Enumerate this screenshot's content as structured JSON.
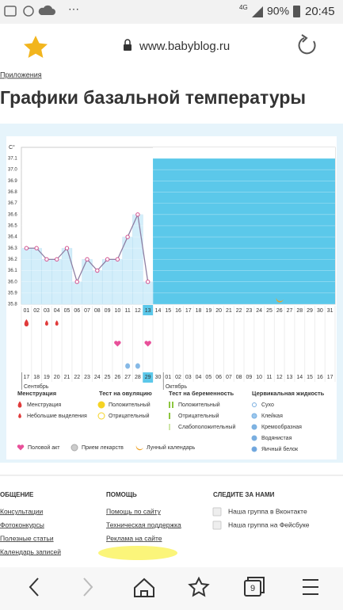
{
  "status_bar": {
    "network": "4G",
    "battery": "90%",
    "time": "20:45"
  },
  "browser": {
    "url": "www.babyblog.ru",
    "tabs": "9"
  },
  "breadcrumb": "Приложения",
  "title": "Графики базальной температуры",
  "chart_data": {
    "type": "line",
    "y_label": "C°",
    "categories": [
      "01",
      "02",
      "03",
      "04",
      "05",
      "06",
      "07",
      "08",
      "09",
      "10",
      "11",
      "12",
      "13",
      "14",
      "15",
      "16",
      "17",
      "18",
      "19",
      "20",
      "21",
      "22",
      "23",
      "24",
      "25",
      "26",
      "27",
      "28",
      "29",
      "30",
      "31"
    ],
    "dates": [
      "17",
      "18",
      "19",
      "20",
      "21",
      "22",
      "23",
      "24",
      "25",
      "26",
      "27",
      "28",
      "29",
      "30",
      "01",
      "02",
      "03",
      "04",
      "05",
      "06",
      "07",
      "08",
      "09",
      "10",
      "11",
      "12",
      "13",
      "14",
      "15",
      "16",
      "17"
    ],
    "months": [
      "Сентябрь",
      "Октябрь"
    ],
    "values": [
      36.3,
      36.3,
      36.2,
      36.2,
      36.3,
      36.0,
      36.2,
      36.1,
      36.2,
      36.2,
      36.4,
      36.6,
      36.0,
      null,
      null,
      null,
      null,
      null,
      null,
      null,
      null,
      null,
      null,
      null,
      null,
      null,
      null,
      null,
      null,
      null,
      null
    ],
    "color": "#8e7fa3",
    "ylim": [
      35.8,
      37.1
    ],
    "yticks": [
      35.8,
      35.9,
      {
        "value": 36,
        "label": "36.0"
      },
      36.1,
      36.2,
      36.3,
      36.4,
      36.5,
      36.6,
      36.7,
      36.8,
      36.9,
      {
        "value": 37,
        "label": "37.0"
      },
      37.1
    ],
    "grid": true
  },
  "legend": {
    "groups": [
      {
        "title": "Менструация",
        "items": [
          "Менструация",
          "Небольшие выделения"
        ]
      },
      {
        "title": "Тест на овуляцию",
        "items": [
          "Положительный",
          "Отрицательный"
        ]
      },
      {
        "title": "Тест на беременность",
        "items": [
          "Положительный",
          "Отрицательный",
          "Слабоположительный"
        ]
      },
      {
        "title": "Цервикальная жидкость",
        "items": [
          "Сухо",
          "Клейкая",
          "Кремообразная",
          "Водянистая",
          "Яичный белок"
        ]
      }
    ],
    "extra": [
      "Половой акт",
      "Прием лекарств",
      "Лунный календарь"
    ]
  },
  "footer": {
    "columns": [
      {
        "title": "ОБЩЕНИЕ",
        "links": [
          "Консультации",
          "Фотоконкурсы",
          "Полезные статьи",
          "Календарь записей"
        ]
      },
      {
        "title": "ПОМОЩЬ",
        "links": [
          "Помощь по сайту",
          "Техническая поддержка",
          "Реклама на сайте"
        ]
      },
      {
        "title": "СЛЕДИТЕ ЗА НАМИ",
        "links": [
          "Наша группа в Вконтакте",
          "Наша группа на Фейсбуке"
        ]
      }
    ]
  }
}
